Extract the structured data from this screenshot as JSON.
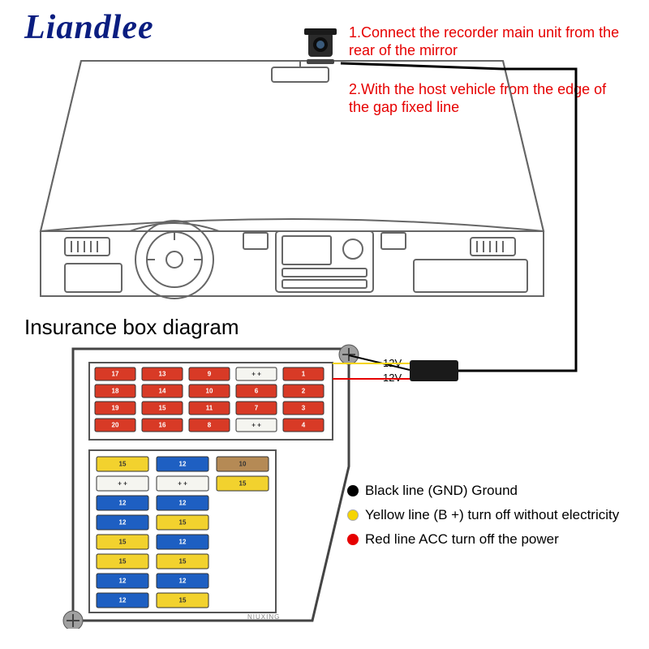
{
  "brand": "Liandlee",
  "instructions": {
    "line1": "1.Connect the recorder main unit from the rear of the mirror",
    "line2": "2.With the host vehicle from the edge of the gap fixed line"
  },
  "section_title": "Insurance box diagram",
  "voltage": {
    "a": "12V",
    "b": "12V"
  },
  "legend": {
    "black": "Black line (GND) Ground",
    "yellow": "Yellow line (B +) turn off without electricity",
    "red": "Red line ACC turn off the power"
  },
  "watermark": "NIUXING",
  "colors": {
    "brand": "#0a1d80",
    "instruction": "#e60000",
    "outline": "#666666",
    "fusebox_border": "#444444",
    "fuse_red": "#d83a26",
    "fuse_blue": "#1e5fc2",
    "fuse_yellow": "#f2d22e",
    "fuse_brown": "#b58a55",
    "fuse_white": "#f5f5f0",
    "wire_red": "#e60000",
    "wire_yellow": "#f5d400",
    "wire_black": "#000000",
    "legend_dot_black": "#000000",
    "legend_dot_yellow": "#f5d400",
    "legend_dot_red": "#e60000"
  },
  "fusebox": {
    "top_grid": {
      "cols": 5,
      "rows": 4,
      "cells": [
        [
          {
            "n": "17",
            "c": "red"
          },
          {
            "n": "13",
            "c": "red"
          },
          {
            "n": "9",
            "c": "red"
          },
          {
            "n": "+ +",
            "c": "white"
          },
          {
            "n": "1",
            "c": "red"
          }
        ],
        [
          {
            "n": "18",
            "c": "red"
          },
          {
            "n": "14",
            "c": "red"
          },
          {
            "n": "10",
            "c": "red"
          },
          {
            "n": "6",
            "c": "red"
          },
          {
            "n": "2",
            "c": "red"
          }
        ],
        [
          {
            "n": "19",
            "c": "red"
          },
          {
            "n": "15",
            "c": "red"
          },
          {
            "n": "11",
            "c": "red"
          },
          {
            "n": "7",
            "c": "red"
          },
          {
            "n": "3",
            "c": "red"
          }
        ],
        [
          {
            "n": "20",
            "c": "red"
          },
          {
            "n": "16",
            "c": "red"
          },
          {
            "n": "8",
            "c": "red"
          },
          {
            "n": "+ +",
            "c": "white"
          },
          {
            "n": "4",
            "c": "red"
          }
        ]
      ]
    },
    "bottom_grid": {
      "cols": 3,
      "rows": 8,
      "cells": [
        [
          {
            "n": "15",
            "c": "yellow"
          },
          {
            "n": "12",
            "c": "blue"
          },
          {
            "n": "10",
            "c": "brown"
          }
        ],
        [
          {
            "n": "+ +",
            "c": "white"
          },
          {
            "n": "+ +",
            "c": "white"
          },
          {
            "n": "15",
            "c": "yellow"
          }
        ],
        [
          {
            "n": "12",
            "c": "blue"
          },
          {
            "n": "12",
            "c": "blue"
          },
          {
            "n": "",
            "c": ""
          }
        ],
        [
          {
            "n": "12",
            "c": "blue"
          },
          {
            "n": "15",
            "c": "yellow"
          },
          {
            "n": "",
            "c": ""
          }
        ],
        [
          {
            "n": "15",
            "c": "yellow"
          },
          {
            "n": "12",
            "c": "blue"
          },
          {
            "n": "",
            "c": ""
          }
        ],
        [
          {
            "n": "15",
            "c": "yellow"
          },
          {
            "n": "15",
            "c": "yellow"
          },
          {
            "n": "",
            "c": ""
          }
        ],
        [
          {
            "n": "12",
            "c": "blue"
          },
          {
            "n": "12",
            "c": "blue"
          },
          {
            "n": "",
            "c": ""
          }
        ],
        [
          {
            "n": "12",
            "c": "blue"
          },
          {
            "n": "15",
            "c": "yellow"
          },
          {
            "n": "",
            "c": ""
          }
        ]
      ]
    }
  },
  "typography": {
    "brand_fontsize": 42,
    "instruction_fontsize": 18,
    "section_title_fontsize": 26,
    "legend_fontsize": 17,
    "volt_fontsize": 13
  }
}
